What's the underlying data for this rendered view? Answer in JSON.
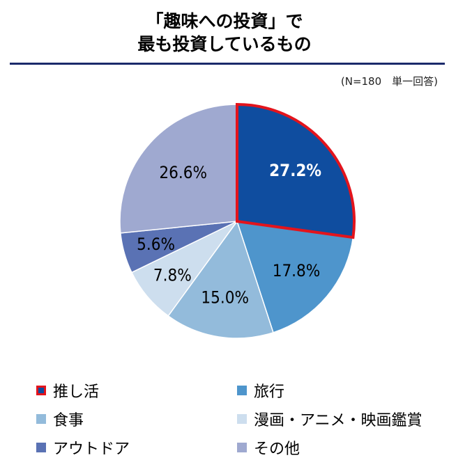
{
  "title": {
    "line1": "「趣味への投資」で",
    "line2": "最も投資しているもの"
  },
  "note": "(N=180　単一回答)",
  "chart_data": {
    "type": "pie",
    "title": "「趣味への投資」で最も投資しているもの",
    "unit": "%",
    "categories": [
      "推し活",
      "旅行",
      "食事",
      "漫画・アニメ・映画鑑賞",
      "アウトドア",
      "その他"
    ],
    "values": [
      27.2,
      17.8,
      15.0,
      7.8,
      5.6,
      26.6
    ],
    "labels": [
      "27.2%",
      "17.8%",
      "15.0%",
      "7.8%",
      "5.6%",
      "26.6%"
    ],
    "colors": [
      "#0f4d9f",
      "#4e95cc",
      "#93bbdb",
      "#cddeee",
      "#5a72b4",
      "#9fa9d0"
    ],
    "label_colors": [
      "#ffffff",
      "#000000",
      "#000000",
      "#000000",
      "#000000",
      "#000000"
    ],
    "highlight": {
      "index": 0,
      "outline_color": "#e3141c"
    },
    "start": "12 o'clock",
    "direction": "clockwise",
    "legend_position": "bottom"
  },
  "legend": {
    "items": [
      {
        "label": "推し活",
        "color": "#0f4d9f",
        "highlighted": true
      },
      {
        "label": "旅行",
        "color": "#4e95cc",
        "highlighted": false
      },
      {
        "label": "食事",
        "color": "#93bbdb",
        "highlighted": false
      },
      {
        "label": "漫画・アニメ・映画鑑賞",
        "color": "#cddeee",
        "highlighted": false
      },
      {
        "label": "アウトドア",
        "color": "#5a72b4",
        "highlighted": false
      },
      {
        "label": "その他",
        "color": "#9fa9d0",
        "highlighted": false
      }
    ]
  }
}
